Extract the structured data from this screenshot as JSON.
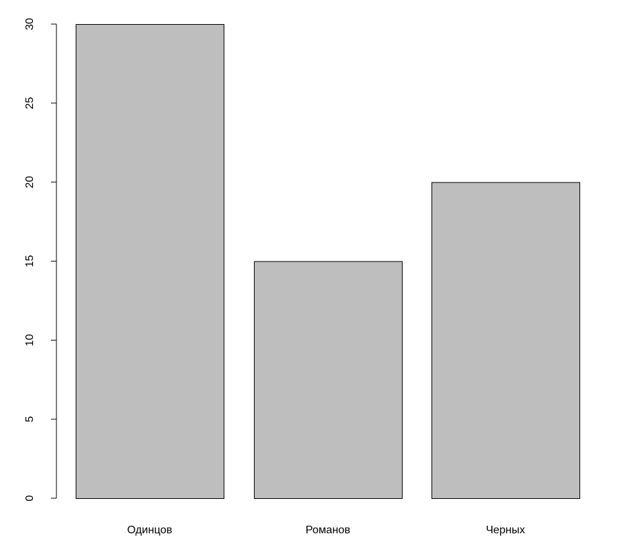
{
  "chart_data": {
    "type": "bar",
    "categories": [
      "Одинцов",
      "Романов",
      "Черных"
    ],
    "values": [
      30,
      15,
      20
    ],
    "ylim": [
      0,
      30
    ],
    "yticks": [
      "0",
      "5",
      "10",
      "15",
      "20",
      "25",
      "30"
    ],
    "title": "",
    "xlabel": "",
    "ylabel": "",
    "grid": false,
    "bar_color": "#bebebe",
    "bar_border_color": "#000000"
  }
}
